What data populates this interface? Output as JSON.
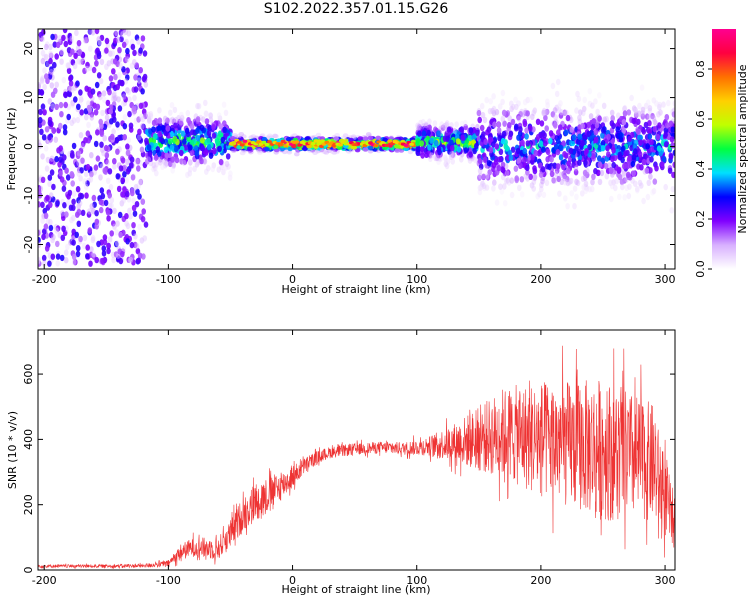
{
  "figure": {
    "title": "S102.2022.357.01.15.G26"
  },
  "chart_data": [
    {
      "type": "heatmap",
      "title": "S102.2022.357.01.15.G26",
      "xlabel": "Height of straight line (km)",
      "ylabel": "Frequency (Hz)",
      "xlim": [
        -205,
        308
      ],
      "ylim": [
        -25,
        24
      ],
      "x_ticks": [
        "-200",
        "-100",
        "0",
        "100",
        "200",
        "300"
      ],
      "y_ticks": [
        "-20",
        "-10",
        "0",
        "10",
        "20"
      ],
      "colorbar": {
        "label": "Normalized spectral amplitude",
        "ticks": [
          "0.0",
          "0.2",
          "0.4",
          "0.6",
          "0.8"
        ],
        "range": [
          0,
          0.96
        ],
        "placement": "right"
      },
      "colormap": [
        "#ffffff",
        "#d8b0ff",
        "#8000ff",
        "#0000ff",
        "#00e0ff",
        "#00ff40",
        "#c0ff00",
        "#ffd000",
        "#ff7000",
        "#ff0040",
        "#ff0090"
      ],
      "features": [
        {
          "x": [
            -205,
            -118
          ],
          "center_freq": 0,
          "spread_hz": 24,
          "amplitude": 0.15,
          "description": "broadband noise"
        },
        {
          "x": [
            -118,
            -50
          ],
          "center_freq": 1,
          "spread_hz": 6,
          "amplitude": 0.45
        },
        {
          "x": [
            -50,
            100
          ],
          "center_freq": 0.5,
          "spread_hz": 1.5,
          "amplitude": 0.9
        },
        {
          "x": [
            100,
            150
          ],
          "center_freq": 1,
          "spread_hz": 4,
          "amplitude": 0.5
        },
        {
          "x": [
            150,
            308
          ],
          "center_freq": 0,
          "spread_hz": 10,
          "amplitude": 0.35
        }
      ],
      "grid": false
    },
    {
      "type": "line",
      "xlabel": "Height of straight line (km)",
      "ylabel": "SNR (10 * v/v)",
      "xlim": [
        -205,
        308
      ],
      "ylim": [
        0,
        735
      ],
      "x_ticks": [
        "-200",
        "-100",
        "0",
        "100",
        "200",
        "300"
      ],
      "y_ticks": [
        "0",
        "200",
        "400",
        "600"
      ],
      "series": [
        {
          "color": "#ee3333",
          "x": [
            -205,
            -180,
            -150,
            -120,
            -100,
            -90,
            -80,
            -60,
            -50,
            -40,
            -30,
            -20,
            -10,
            0,
            10,
            20,
            30,
            50,
            70,
            90,
            110,
            130,
            150,
            170,
            200,
            230,
            250,
            270,
            290,
            308
          ],
          "mean": [
            12,
            12,
            12,
            13,
            20,
            55,
            70,
            65,
            110,
            170,
            210,
            230,
            255,
            285,
            320,
            345,
            360,
            370,
            375,
            372,
            380,
            390,
            400,
            420,
            400,
            380,
            370,
            350,
            330,
            140
          ],
          "noise_amplitude": [
            5,
            5,
            5,
            6,
            10,
            25,
            30,
            35,
            45,
            55,
            60,
            55,
            45,
            35,
            25,
            20,
            18,
            18,
            18,
            20,
            30,
            60,
            100,
            140,
            180,
            200,
            220,
            200,
            180,
            80
          ]
        }
      ],
      "grid": false
    }
  ]
}
